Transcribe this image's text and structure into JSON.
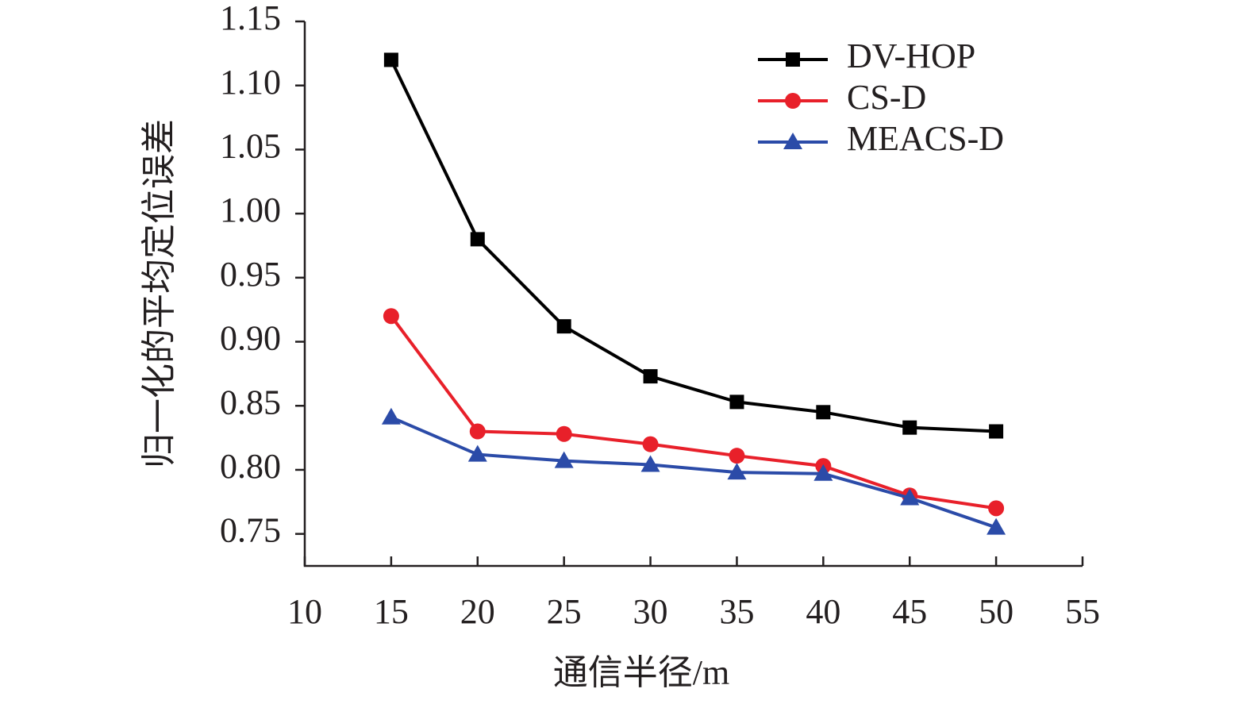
{
  "chart_data": {
    "type": "line",
    "x_label": "通信半径/m",
    "y_label": "归一化的平均定位误差",
    "x": [
      15,
      20,
      25,
      30,
      35,
      40,
      45,
      50
    ],
    "series": [
      {
        "name": "DV-HOP",
        "color": "#000000",
        "marker": "square",
        "values": [
          1.12,
          0.98,
          0.912,
          0.873,
          0.853,
          0.845,
          0.833,
          0.83
        ]
      },
      {
        "name": "CS-D",
        "color": "#e8202a",
        "marker": "circle",
        "values": [
          0.92,
          0.83,
          0.828,
          0.82,
          0.811,
          0.803,
          0.78,
          0.77
        ]
      },
      {
        "name": "MEACS-D",
        "color": "#2b4ba8",
        "marker": "triangle",
        "values": [
          0.841,
          0.812,
          0.807,
          0.804,
          0.798,
          0.797,
          0.778,
          0.755
        ]
      }
    ],
    "xlim": [
      10,
      55
    ],
    "xticks": [
      10,
      15,
      20,
      25,
      30,
      35,
      40,
      45,
      50,
      55
    ],
    "ylim": [
      0.725,
      1.15
    ],
    "yticks": [
      0.75,
      {
        "value": 0.8,
        "label": "0.80"
      },
      0.85,
      {
        "value": 0.9,
        "label": "0.90"
      },
      0.95,
      {
        "value": 1.0,
        "label": "1.00"
      },
      1.05,
      {
        "value": 1.1,
        "label": "1.10"
      },
      1.15
    ],
    "legend": "upper right"
  }
}
